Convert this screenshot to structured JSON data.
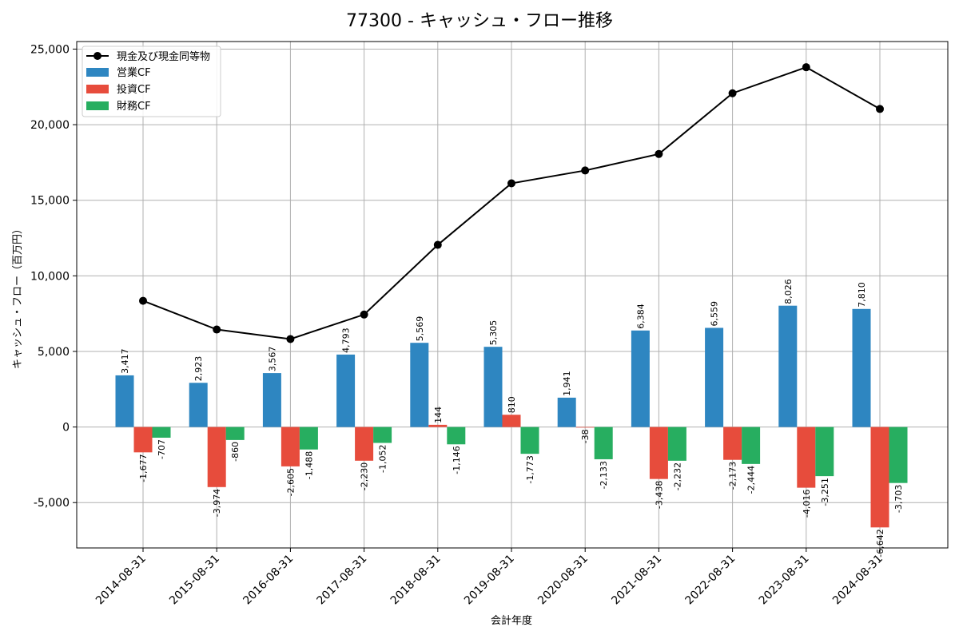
{
  "chart_data": {
    "type": "bar",
    "title": "77300 - キャッシュ・フロー推移",
    "xlabel": "会計年度",
    "ylabel": "キャッシュ・フロー（百万円）",
    "ylim": [
      -8000,
      25500
    ],
    "yticks": [
      -5000,
      0,
      5000,
      10000,
      15000,
      20000,
      25000
    ],
    "ytick_labels": [
      "-5,000",
      "0",
      "5,000",
      "10,000",
      "15,000",
      "20,000",
      "25,000"
    ],
    "grid": true,
    "legend_position": "top-left",
    "categories": [
      "2014-08-31",
      "2015-08-31",
      "2016-08-31",
      "2017-08-31",
      "2018-08-31",
      "2019-08-31",
      "2020-08-31",
      "2021-08-31",
      "2022-08-31",
      "2023-08-31",
      "2024-08-31"
    ],
    "series": [
      {
        "name": "営業CF",
        "kind": "bar",
        "color": "#2e86c1",
        "values": [
          3417,
          2923,
          3567,
          4793,
          5569,
          5305,
          1941,
          6384,
          6559,
          8026,
          7810
        ],
        "labels": [
          "3,417",
          "2,923",
          "3,567",
          "4,793",
          "5,569",
          "5,305",
          "1,941",
          "6,384",
          "6,559",
          "8,026",
          "7,810"
        ]
      },
      {
        "name": "投資CF",
        "kind": "bar",
        "color": "#e74c3c",
        "values": [
          -1677,
          -3974,
          -2605,
          -2230,
          144,
          810,
          -38,
          -3438,
          -2173,
          -4016,
          -6642
        ],
        "labels": [
          "-1,677",
          "-3,974",
          "-2,605",
          "-2,230",
          "144",
          "810",
          "-38",
          "-3,438",
          "-2,173",
          "-4,016",
          "-6,642"
        ]
      },
      {
        "name": "財務CF",
        "kind": "bar",
        "color": "#27ae60",
        "values": [
          -707,
          -860,
          -1488,
          -1052,
          -1146,
          -1773,
          -2133,
          -2232,
          -2444,
          -3251,
          -3703
        ],
        "labels": [
          "-707",
          "-860",
          "-1,488",
          "-1,052",
          "-1,146",
          "-1,773",
          "-2,133",
          "-2,232",
          "-2,444",
          "-3,251",
          "-3,703"
        ]
      },
      {
        "name": "現金及び現金同等物",
        "kind": "line",
        "color": "#000000",
        "values": [
          8350,
          6450,
          5820,
          7440,
          12050,
          16120,
          16970,
          18060,
          22080,
          23800,
          21040
        ]
      }
    ]
  }
}
